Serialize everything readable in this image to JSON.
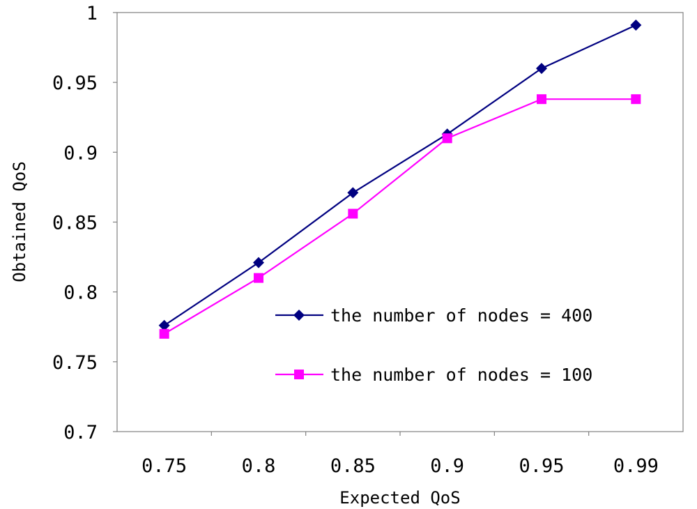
{
  "chart_data": {
    "type": "line",
    "categories": [
      "0.75",
      "0.8",
      "0.85",
      "0.9",
      "0.95",
      "0.99"
    ],
    "series": [
      {
        "name": "the number of nodes = 400",
        "values": [
          0.776,
          0.821,
          0.871,
          0.913,
          0.96,
          0.991
        ],
        "color": "#000080",
        "marker": "diamond"
      },
      {
        "name": "the number of nodes = 100",
        "values": [
          0.77,
          0.81,
          0.856,
          0.91,
          0.938,
          0.938
        ],
        "color": "#ff00ff",
        "marker": "square"
      }
    ],
    "xlabel": "Expected QoS",
    "ylabel": "Obtained QoS",
    "ylim": [
      0.7,
      1.0
    ],
    "yticks": [
      "0.7",
      "0.75",
      "0.8",
      "0.85",
      "0.9",
      "0.95",
      "1"
    ],
    "grid": false,
    "legend_position": "inside, lower-right"
  }
}
